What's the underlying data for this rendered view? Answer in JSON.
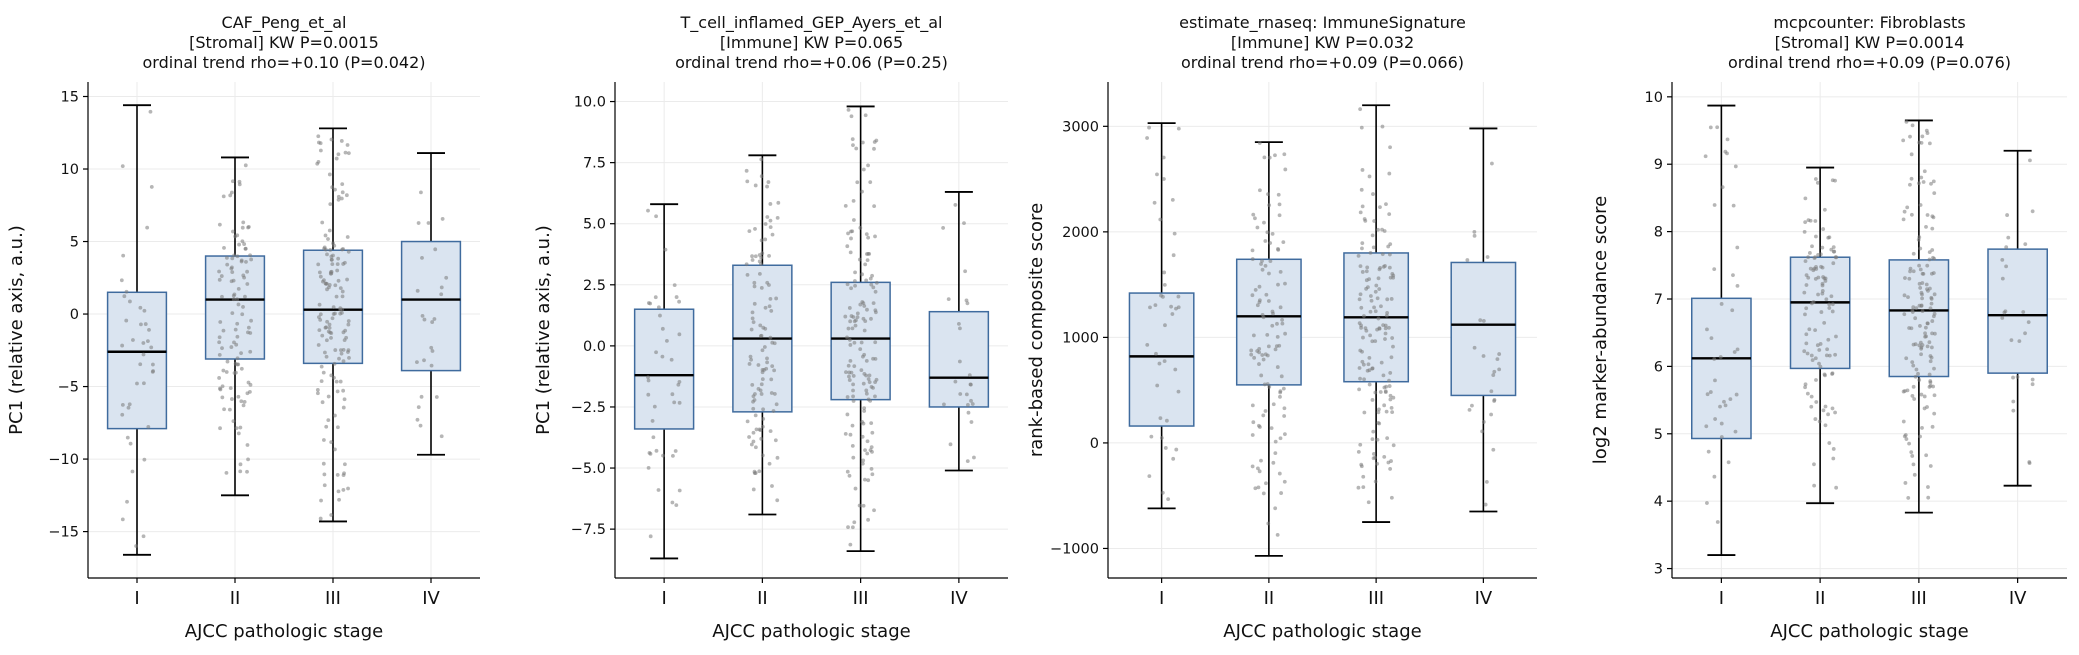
{
  "colors": {
    "box_fill": "#dae4f0",
    "box_edge": "#3f6b9e",
    "median": "#000000",
    "whisker": "#000000",
    "points": "#7a7a7a",
    "grid": "#ebebeb"
  },
  "chart_data": [
    {
      "type": "box",
      "title": [
        "CAF_Peng_et_al",
        "[Stromal]  KW P=0.0015",
        "ordinal trend rho=+0.10 (P=0.042)"
      ],
      "xlabel": "AJCC pathologic stage",
      "ylabel": "PC1 (relative axis, a.u.)",
      "categories": [
        "I",
        "II",
        "III",
        "IV"
      ],
      "ylim": [
        -18.2,
        16
      ],
      "yticks": [
        -15,
        -10,
        -5,
        0,
        5,
        10,
        15
      ],
      "ytick_labels": [
        "−15",
        "−10",
        "−5",
        "0",
        "5",
        "10",
        "15"
      ],
      "grid": true,
      "boxes": [
        {
          "whislo": -16.6,
          "q1": -7.9,
          "med": -2.6,
          "q3": 1.5,
          "whishi": 14.4,
          "n": 40
        },
        {
          "whislo": -12.5,
          "q1": -3.1,
          "med": 1.0,
          "q3": 4.0,
          "whishi": 10.8,
          "n": 110
        },
        {
          "whislo": -14.3,
          "q1": -3.4,
          "med": 0.3,
          "q3": 4.4,
          "whishi": 12.8,
          "n": 150
        },
        {
          "whislo": -9.7,
          "q1": -3.9,
          "med": 1.0,
          "q3": 5.0,
          "whishi": 11.1,
          "n": 25
        }
      ]
    },
    {
      "type": "box",
      "title": [
        "T_cell_inflamed_GEP_Ayers_et_al",
        "[Immune]  KW P=0.065",
        "ordinal trend rho=+0.06 (P=0.25)"
      ],
      "xlabel": "AJCC pathologic stage",
      "ylabel": "PC1 (relative axis, a.u.)",
      "categories": [
        "I",
        "II",
        "III",
        "IV"
      ],
      "ylim": [
        -9.5,
        10.8
      ],
      "yticks": [
        -7.5,
        -5.0,
        -2.5,
        0.0,
        2.5,
        5.0,
        7.5,
        10.0
      ],
      "ytick_labels": [
        "−7.5",
        "−5.0",
        "−2.5",
        "0.0",
        "2.5",
        "5.0",
        "7.5",
        "10.0"
      ],
      "grid": true,
      "boxes": [
        {
          "whislo": -8.7,
          "q1": -3.4,
          "med": -1.2,
          "q3": 1.5,
          "whishi": 5.8,
          "n": 40
        },
        {
          "whislo": -6.9,
          "q1": -2.7,
          "med": 0.3,
          "q3": 3.3,
          "whishi": 7.8,
          "n": 110
        },
        {
          "whislo": -8.4,
          "q1": -2.2,
          "med": 0.3,
          "q3": 2.6,
          "whishi": 9.8,
          "n": 150
        },
        {
          "whislo": -5.1,
          "q1": -2.5,
          "med": -1.3,
          "q3": 1.4,
          "whishi": 6.3,
          "n": 25
        }
      ]
    },
    {
      "type": "box",
      "title": [
        "estimate_rnaseq: ImmuneSignature",
        "[Immune]  KW P=0.032",
        "ordinal trend rho=+0.09 (P=0.066)"
      ],
      "xlabel": "AJCC pathologic stage",
      "ylabel": "rank-based composite score",
      "categories": [
        "I",
        "II",
        "III",
        "IV"
      ],
      "ylim": [
        -1280,
        3420
      ],
      "yticks": [
        -1000,
        0,
        1000,
        2000,
        3000
      ],
      "ytick_labels": [
        "−1000",
        "0",
        "1000",
        "2000",
        "3000"
      ],
      "grid": true,
      "boxes": [
        {
          "whislo": -620,
          "q1": 160,
          "med": 820,
          "q3": 1420,
          "whishi": 3030,
          "n": 40
        },
        {
          "whislo": -1070,
          "q1": 550,
          "med": 1200,
          "q3": 1740,
          "whishi": 2850,
          "n": 110
        },
        {
          "whislo": -750,
          "q1": 580,
          "med": 1190,
          "q3": 1800,
          "whishi": 3200,
          "n": 150
        },
        {
          "whislo": -650,
          "q1": 450,
          "med": 1120,
          "q3": 1710,
          "whishi": 2980,
          "n": 25
        }
      ]
    },
    {
      "type": "box",
      "title": [
        "mcpcounter: Fibroblasts",
        "[Stromal]  KW P=0.0014",
        "ordinal trend rho=+0.09 (P=0.076)"
      ],
      "xlabel": "AJCC pathologic stage",
      "ylabel": "log2 marker-abundance score",
      "categories": [
        "I",
        "II",
        "III",
        "IV"
      ],
      "ylim": [
        2.86,
        10.22
      ],
      "yticks": [
        3,
        4,
        5,
        6,
        7,
        8,
        9,
        10
      ],
      "ytick_labels": [
        "3",
        "4",
        "5",
        "6",
        "7",
        "8",
        "9",
        "10"
      ],
      "grid": true,
      "boxes": [
        {
          "whislo": 3.2,
          "q1": 4.93,
          "med": 6.12,
          "q3": 7.01,
          "whishi": 9.87,
          "n": 40
        },
        {
          "whislo": 3.97,
          "q1": 5.97,
          "med": 6.95,
          "q3": 7.62,
          "whishi": 8.95,
          "n": 110
        },
        {
          "whislo": 3.83,
          "q1": 5.85,
          "med": 6.83,
          "q3": 7.58,
          "whishi": 9.65,
          "n": 150
        },
        {
          "whislo": 4.23,
          "q1": 5.9,
          "med": 6.76,
          "q3": 7.74,
          "whishi": 9.2,
          "n": 25
        }
      ]
    }
  ]
}
